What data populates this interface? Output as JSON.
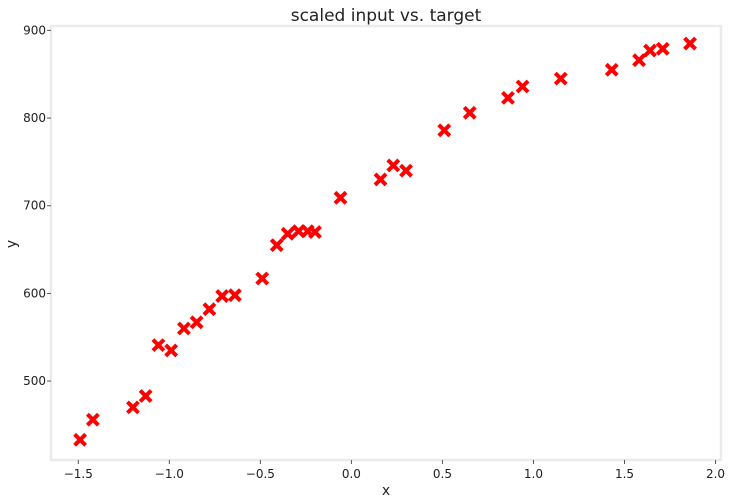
{
  "chart_data": {
    "type": "scatter",
    "title": "scaled input vs. target",
    "xlabel": "x",
    "ylabel": "y",
    "xlim": [
      -1.65,
      2.03
    ],
    "ylim": [
      410,
      905
    ],
    "xticks": [
      -1.5,
      -1.0,
      -0.5,
      0.0,
      0.5,
      1.0,
      1.5,
      2.0
    ],
    "xtick_labels": [
      "−1.5",
      "−1.0",
      "−0.5",
      "0.0",
      "0.5",
      "1.0",
      "1.5",
      "2.0"
    ],
    "yticks": [
      500,
      600,
      700,
      800,
      900
    ],
    "ytick_labels": [
      "500",
      "600",
      "700",
      "800",
      "900"
    ],
    "grid": false,
    "marker": "x",
    "color": "#ff0000",
    "series": [
      {
        "x": [
          -1.49,
          -1.42,
          -1.2,
          -1.13,
          -1.06,
          -0.99,
          -0.92,
          -0.85,
          -0.78,
          -0.71,
          -0.64,
          -0.49,
          -0.41,
          -0.35,
          -0.29,
          -0.24,
          -0.2,
          -0.06,
          0.16,
          0.23,
          0.3,
          0.51,
          0.65,
          0.86,
          0.94,
          1.15,
          1.43,
          1.58,
          1.64,
          1.71,
          1.86
        ],
        "y": [
          433,
          456,
          470,
          483,
          541,
          535,
          560,
          567,
          582,
          597,
          598,
          617,
          655,
          668,
          671,
          671,
          670,
          709,
          730,
          746,
          740,
          786,
          806,
          823,
          836,
          845,
          855,
          866,
          877,
          879,
          885
        ]
      }
    ]
  }
}
